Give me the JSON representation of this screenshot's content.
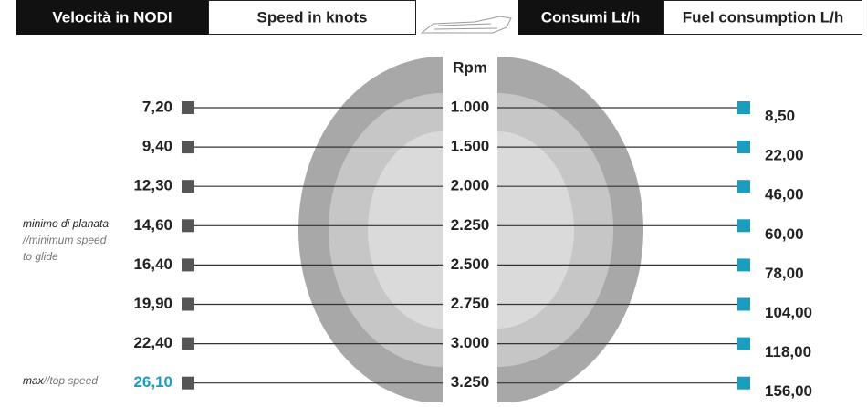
{
  "header": {
    "speed_it": "Velocità in NODI",
    "speed_en": "Speed in knots",
    "fuel_it": "Consumi Lt/h",
    "fuel_en": "Fuel consumption L/h"
  },
  "rpm_label": "Rpm",
  "rows": [
    {
      "speed": "7,20",
      "rpm": "1.000",
      "fuel": "8,50"
    },
    {
      "speed": "9,40",
      "rpm": "1.500",
      "fuel": "22,00"
    },
    {
      "speed": "12,30",
      "rpm": "2.000",
      "fuel": "46,00"
    },
    {
      "speed": "14,60",
      "rpm": "2.250",
      "fuel": "60,00"
    },
    {
      "speed": "16,40",
      "rpm": "2.500",
      "fuel": "78,00"
    },
    {
      "speed": "19,90",
      "rpm": "2.750",
      "fuel": "104,00"
    },
    {
      "speed": "22,40",
      "rpm": "3.000",
      "fuel": "118,00"
    },
    {
      "speed": "26,10",
      "rpm": "3.250",
      "fuel": "156,00"
    }
  ],
  "notes": {
    "glide": [
      "minimo di planata",
      "//minimum speed",
      "to glide"
    ],
    "top": [
      "max",
      "//top speed"
    ]
  }
}
